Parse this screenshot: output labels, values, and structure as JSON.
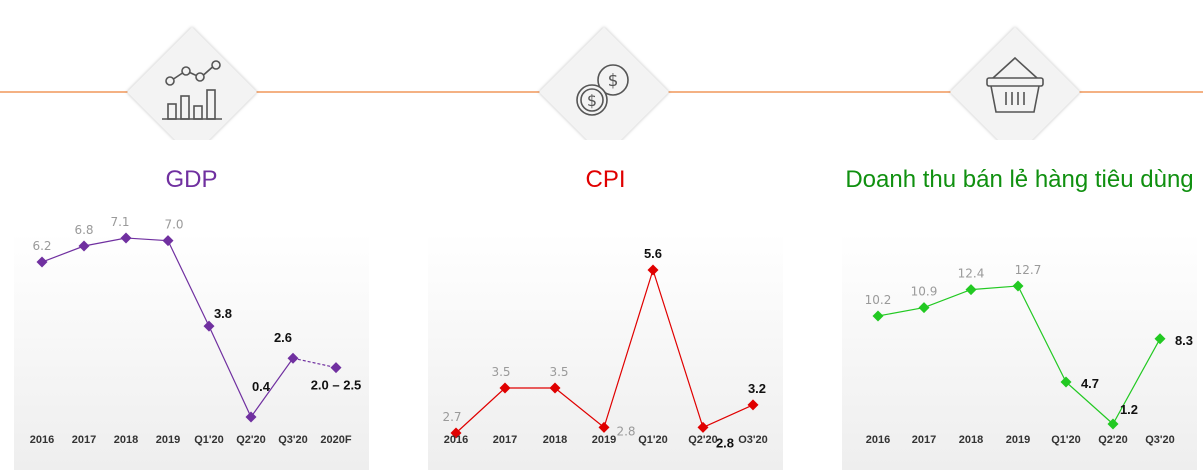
{
  "header": {
    "line_color": "#f4b183",
    "icons": [
      {
        "name": "gdp-chart-icon"
      },
      {
        "name": "coins-dollar-icon"
      },
      {
        "name": "shopping-basket-icon"
      }
    ]
  },
  "panels": [
    {
      "title": "GDP",
      "title_color": "#7030a0"
    },
    {
      "title": "CPI",
      "title_color": "#e00000"
    },
    {
      "title": "Doanh thu bán lẻ hàng tiêu dùng",
      "title_color": "#109010"
    }
  ],
  "chart_data": [
    {
      "type": "line",
      "title": "GDP",
      "color": "#7030a0",
      "categories": [
        "2016",
        "2017",
        "2018",
        "2019",
        "Q1'20",
        "Q2'20",
        "Q3'20",
        "2020F"
      ],
      "values": [
        6.2,
        6.8,
        7.1,
        7.0,
        3.8,
        0.4,
        2.6,
        2.25
      ],
      "labels": [
        "6.2",
        "6.8",
        "7.1",
        "7.0",
        "3.8",
        "0.4",
        "2.6",
        "2.0 – 2.5"
      ],
      "forecast_from_index": 6,
      "ylim": [
        0,
        8
      ]
    },
    {
      "type": "line",
      "title": "CPI",
      "color": "#e00000",
      "categories": [
        "2016",
        "2017",
        "2018",
        "2019",
        "Q1'20",
        "Q2'20",
        "O3'20"
      ],
      "values": [
        2.7,
        3.5,
        3.5,
        2.8,
        5.6,
        2.8,
        3.2
      ],
      "labels": [
        "2.7",
        "3.5",
        "3.5",
        "2.8",
        "5.6",
        "2.8",
        "3.2"
      ],
      "ylim": [
        0,
        6
      ]
    },
    {
      "type": "line",
      "title": "Doanh thu bán lẻ hàng tiêu dùng",
      "color": "#22c922",
      "categories": [
        "2016",
        "2017",
        "2018",
        "2019",
        "Q1'20",
        "Q2'20",
        "Q3'20"
      ],
      "values": [
        10.2,
        10.9,
        12.4,
        12.7,
        4.7,
        1.2,
        8.3
      ],
      "labels": [
        "10.2",
        "10.9",
        "12.4",
        "12.7",
        "4.7",
        "1.2",
        "8.3"
      ],
      "ylim": [
        0,
        14
      ]
    }
  ]
}
